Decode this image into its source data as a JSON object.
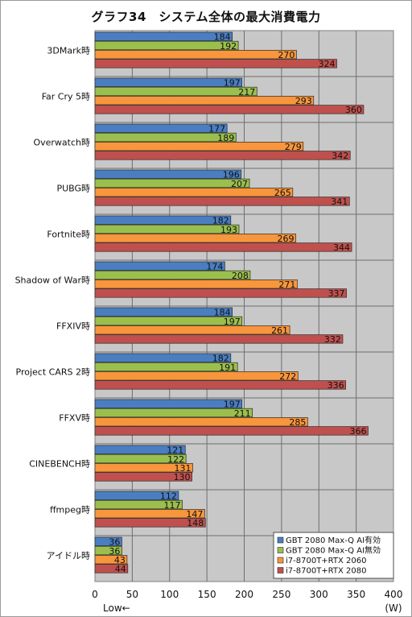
{
  "chart_data": {
    "type": "bar",
    "orientation": "horizontal",
    "title": "グラフ34　システム全体の最大消費電力",
    "categories": [
      "3DMark時",
      "Far Cry 5時",
      "Overwatch時",
      "PUBG時",
      "Fortnite時",
      "Shadow of War時",
      "FFXIV時",
      "Project CARS 2時",
      "FFXV時",
      "CINEBENCH時",
      "ffmpeg時",
      "アイドル時"
    ],
    "series": [
      {
        "name": "GBT 2080 Max-Q AI有効",
        "color": "#4a7ec1",
        "values": [
          184,
          197,
          177,
          196,
          182,
          174,
          184,
          182,
          197,
          121,
          112,
          36
        ]
      },
      {
        "name": "GBT 2080 Max-Q AI無効",
        "color": "#9bbf4d",
        "values": [
          192,
          217,
          189,
          207,
          193,
          208,
          197,
          191,
          211,
          122,
          117,
          36
        ]
      },
      {
        "name": "i7-8700T+RTX 2060",
        "color": "#f7963c",
        "values": [
          270,
          293,
          279,
          265,
          269,
          271,
          261,
          272,
          285,
          131,
          147,
          43
        ]
      },
      {
        "name": "i7-8700T+RTX 2080",
        "color": "#c0504d",
        "values": [
          324,
          360,
          342,
          341,
          344,
          337,
          332,
          336,
          366,
          130,
          148,
          44
        ]
      }
    ],
    "xlim": [
      0,
      400
    ],
    "xticks": [
      "0",
      "50",
      "100",
      "150",
      "200",
      "250",
      "300",
      "350",
      "400"
    ],
    "xlabel": "(W)",
    "direction_note": "Low←",
    "grid": true,
    "legend_position": "bottom-right",
    "plot_background": "#c8c8c8"
  }
}
